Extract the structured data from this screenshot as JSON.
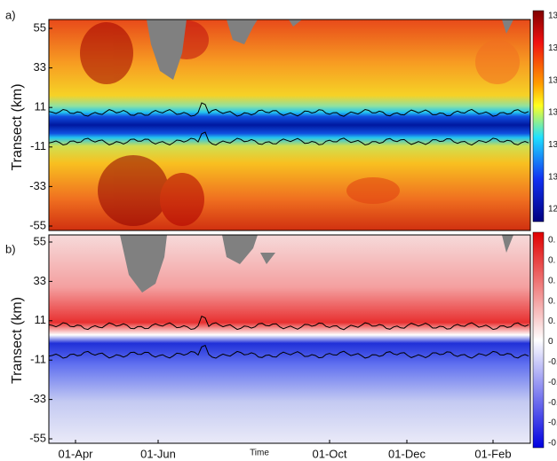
{
  "chart_data": [
    {
      "type": "heatmap",
      "panel_label": "a)",
      "y_label": "Transect (km)",
      "ylim": [
        -55,
        55
      ],
      "yticks": [
        -55,
        -33,
        -11,
        11,
        33,
        55
      ],
      "colorbar_labels": [
        "13",
        "13",
        "13",
        "13",
        "13",
        "13",
        "12"
      ]
    },
    {
      "type": "heatmap",
      "panel_label": "b)",
      "y_label": "Transect (km)",
      "ylim": [
        -55,
        55
      ],
      "yticks": [
        -55,
        -33,
        -11,
        11,
        33,
        55
      ],
      "x_label": "Time",
      "categories": [
        "01-Apr",
        "01-Jun",
        "01-Oct",
        "01-Dec",
        "01-Feb"
      ],
      "colorbar_labels": [
        "0.",
        "0.",
        "0.",
        "0.",
        "0.",
        "0",
        "-0.",
        "-0.",
        "-0.",
        "-0.",
        "-0"
      ]
    }
  ]
}
